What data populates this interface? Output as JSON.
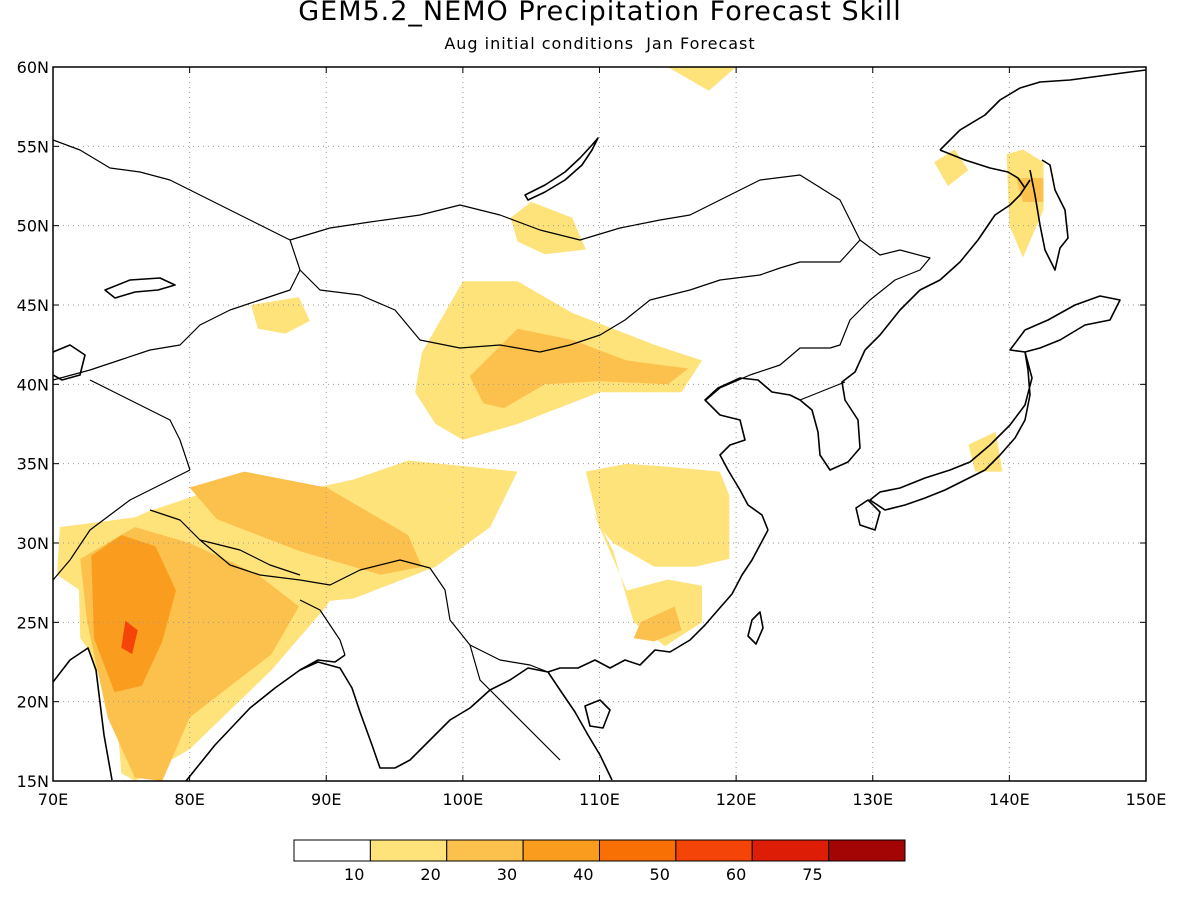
{
  "title": "GEM5.2_NEMO Precipitation Forecast Skill",
  "subtitle": "Aug initial conditions  Jan Forecast",
  "map": {
    "lon_range": [
      70,
      150
    ],
    "lat_range": [
      15,
      60
    ],
    "lon_ticks": [
      "70E",
      "80E",
      "90E",
      "100E",
      "110E",
      "120E",
      "130E",
      "140E",
      "150E"
    ],
    "lat_ticks": [
      "15N",
      "20N",
      "25N",
      "30N",
      "35N",
      "40N",
      "45N",
      "50N",
      "55N",
      "60N"
    ],
    "grid": "dotted",
    "coastline_color": "#000000"
  },
  "legend": {
    "labels": [
      "10",
      "20",
      "30",
      "40",
      "50",
      "60",
      "75"
    ],
    "colors": [
      "#ffffff",
      "#fee27a",
      "#fcc14c",
      "#fa9c1e",
      "#f87004",
      "#f54407",
      "#dd1d05",
      "#a30404"
    ]
  },
  "skill_regions": [
    {
      "level": 1,
      "lon": [
        70.5,
        84,
        92,
        96,
        104,
        102,
        98,
        92,
        86,
        80,
        75,
        73,
        72,
        70.3
      ],
      "lat": [
        31,
        32.5,
        34,
        35.2,
        34.5,
        31,
        28.5,
        26.5,
        26,
        24,
        21,
        22,
        27,
        28
      ]
    },
    {
      "level": 1,
      "lon": [
        71.8,
        77,
        84,
        88.5,
        92,
        90,
        86,
        80,
        76,
        75,
        74.5,
        72
      ],
      "lat": [
        30,
        32,
        34,
        33.5,
        29,
        26,
        22,
        17,
        15,
        15.5,
        21,
        24
      ]
    },
    {
      "level": 2,
      "lon": [
        72,
        76,
        80,
        85,
        88,
        86,
        83,
        80,
        78,
        76,
        74,
        72.5
      ],
      "lat": [
        29,
        31,
        30,
        28,
        26,
        23,
        21,
        19,
        15,
        15.2,
        19,
        25
      ]
    },
    {
      "level": 2,
      "lon": [
        80,
        84,
        90,
        96,
        97,
        94,
        88,
        82
      ],
      "lat": [
        33.5,
        34.5,
        33.5,
        30.5,
        28.5,
        28,
        29.5,
        31.5
      ]
    },
    {
      "level": 3,
      "lon": [
        72.8,
        75,
        77.5,
        79,
        78,
        76.5,
        74.5,
        73
      ],
      "lat": [
        29.2,
        30.5,
        29.8,
        27,
        23.8,
        21,
        20.6,
        24
      ]
    },
    {
      "level": 5,
      "lon": [
        75.3,
        76.2,
        75.8,
        75
      ],
      "lat": [
        25.1,
        24.5,
        23,
        23.4
      ]
    },
    {
      "level": 1,
      "lon": [
        97,
        100,
        104,
        108,
        114,
        117.5,
        116,
        110,
        104,
        100,
        98,
        96.5
      ],
      "lat": [
        42,
        46.5,
        46.5,
        44.5,
        42.5,
        41.5,
        39.5,
        39.5,
        37.5,
        36.5,
        37.5,
        39.5
      ]
    },
    {
      "level": 2,
      "lon": [
        100.5,
        104,
        108,
        112,
        116.5,
        115,
        110,
        106,
        103,
        101.5
      ],
      "lat": [
        40.5,
        43.5,
        42.8,
        41.5,
        41,
        40,
        40.2,
        40,
        38.5,
        38.8
      ]
    },
    {
      "level": 1,
      "lon": [
        109,
        112,
        115,
        118.8,
        119.5,
        119.5,
        117,
        114,
        111,
        110,
        109.5,
        111,
        112.5,
        114.8,
        117.5,
        117.5,
        115,
        112,
        110
      ],
      "lat": [
        34.5,
        35,
        34.8,
        34.5,
        33,
        29,
        28.5,
        28.5,
        30,
        31,
        32,
        29.5,
        25,
        23.5,
        25,
        27.3,
        27.7,
        27,
        31
      ]
    },
    {
      "level": 2,
      "lon": [
        113,
        115.5,
        116,
        114,
        112.5
      ],
      "lat": [
        25,
        26,
        24.5,
        23.8,
        24
      ]
    },
    {
      "level": 1,
      "lon": [
        103.5,
        105,
        108,
        109,
        106,
        104
      ],
      "lat": [
        50.5,
        51.5,
        50.5,
        48.5,
        48.2,
        49
      ]
    },
    {
      "level": 1,
      "lon": [
        84.5,
        88,
        88.8,
        87,
        85
      ],
      "lat": [
        45,
        45.5,
        44,
        43.2,
        43.5
      ]
    },
    {
      "level": 1,
      "lon": [
        134.5,
        136,
        137,
        135.5
      ],
      "lat": [
        54,
        54.8,
        53.5,
        52.5
      ]
    },
    {
      "level": 1,
      "lon": [
        139.8,
        141,
        142.5,
        142.5,
        141,
        140
      ],
      "lat": [
        54.5,
        54.8,
        54,
        51,
        48,
        50
      ]
    },
    {
      "level": 2,
      "lon": [
        140.5,
        142.5,
        142.5,
        141
      ],
      "lat": [
        53,
        53,
        51.5,
        51.5
      ]
    },
    {
      "level": 1,
      "lon": [
        137,
        139,
        139.5,
        137.5
      ],
      "lat": [
        36.2,
        37,
        34.5,
        34.5
      ]
    },
    {
      "level": 1,
      "lon": [
        115,
        117,
        120,
        118
      ],
      "lat": [
        60,
        60,
        60,
        58.5
      ]
    }
  ]
}
